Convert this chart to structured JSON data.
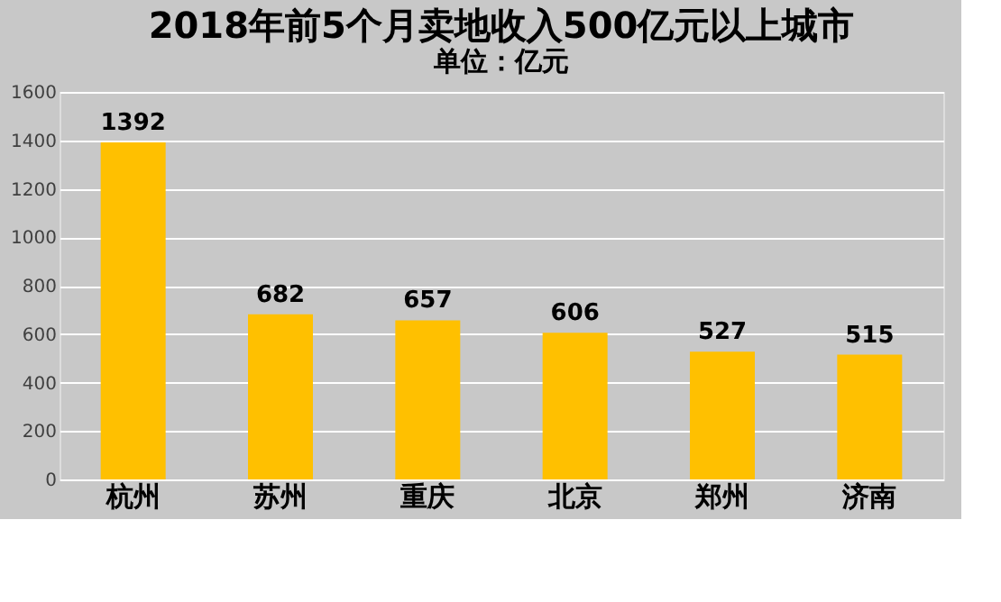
{
  "chart_data": {
    "type": "bar",
    "title": "2018年前5个月卖地收入500亿元以上城市",
    "subtitle": "单位：亿元",
    "categories": [
      "杭州",
      "苏州",
      "重庆",
      "北京",
      "郑州",
      "济南"
    ],
    "values": [
      1392,
      682,
      657,
      606,
      527,
      515
    ],
    "color": "#ffc000",
    "ylim": [
      0,
      1600
    ],
    "yticks": [
      0,
      200,
      400,
      600,
      800,
      1000,
      1200,
      1400,
      1600
    ],
    "grid": "y",
    "data_labels": true
  }
}
